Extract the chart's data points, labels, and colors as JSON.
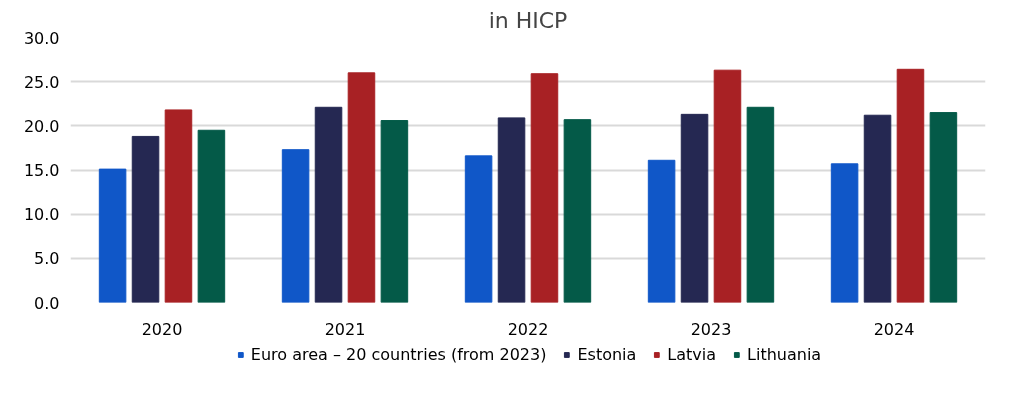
{
  "chart_data": {
    "type": "bar",
    "title": "in HICP",
    "categories": [
      "2020",
      "2021",
      "2022",
      "2023",
      "2024"
    ],
    "series": [
      {
        "name": "Euro area – 20 countries (from 2023)",
        "color": "#1057c8",
        "values": [
          15.1,
          17.3,
          16.6,
          16.1,
          15.7
        ]
      },
      {
        "name": "Estonia",
        "color": "#252852",
        "values": [
          18.8,
          22.1,
          20.9,
          21.3,
          21.2
        ]
      },
      {
        "name": "Latvia",
        "color": "#a82124",
        "values": [
          21.8,
          26.0,
          25.9,
          26.3,
          26.4
        ]
      },
      {
        "name": "Lithuania",
        "color": "#045a48",
        "values": [
          19.5,
          20.6,
          20.7,
          22.1,
          21.5
        ]
      }
    ],
    "ylim": [
      0,
      30
    ],
    "yticks": [
      {
        "value": 0,
        "label": "0.0"
      },
      {
        "value": 5,
        "label": "5.0"
      },
      {
        "value": 10,
        "label": "10.0"
      },
      {
        "value": 15,
        "label": "15.0"
      },
      {
        "value": 20,
        "label": "20.0"
      },
      {
        "value": 25,
        "label": "25.0"
      },
      {
        "value": 30,
        "label": "30.0"
      }
    ],
    "grid": "y",
    "legend": "bottom"
  }
}
